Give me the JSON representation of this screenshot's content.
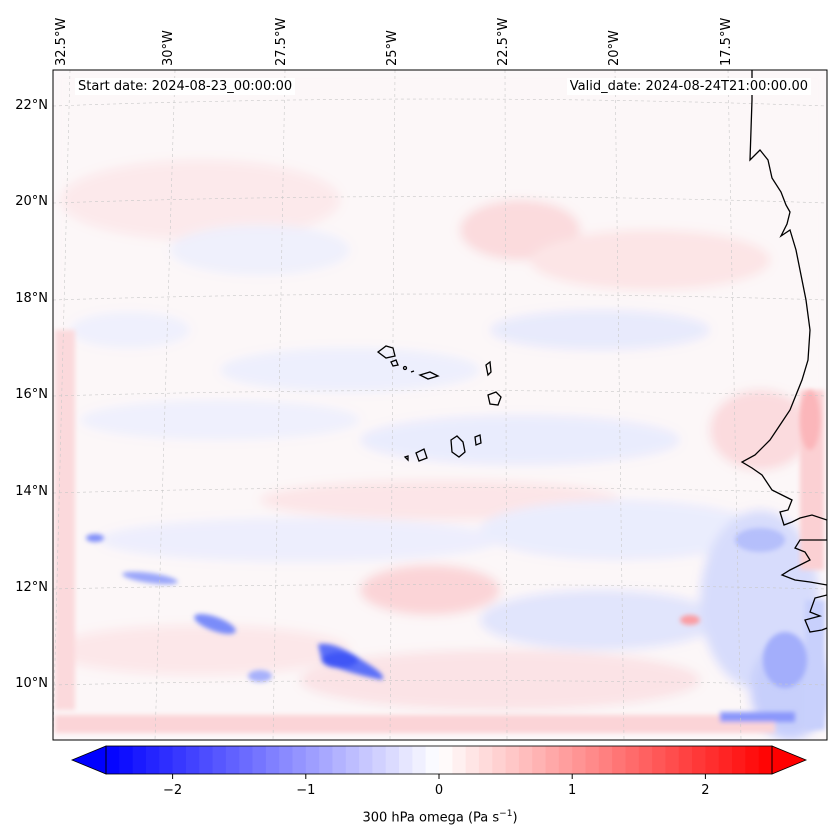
{
  "map": {
    "start_label": "Start date: 2024-08-23_00:00:00",
    "valid_label": "Valid_date: 2024-08-24T21:00:00.00",
    "lon_labels": [
      "32.5°W",
      "30°W",
      "27.5°W",
      "25°W",
      "22.5°W",
      "20°W",
      "17.5°W"
    ],
    "lat_labels": [
      "22°N",
      "20°N",
      "18°N",
      "16°N",
      "14°N",
      "12°N",
      "10°N"
    ],
    "field": "300 hPa omega",
    "colormap": "bwr",
    "colors": {
      "negative": "#0000ff",
      "neutral": "#ffffff",
      "positive": "#ff0000",
      "coast": "#000000",
      "grid": "#b0b0b0"
    }
  },
  "colorbar": {
    "label_text": "300 hPa omega (Pa s",
    "label_sup": "−1",
    "label_end": ")",
    "ticks": [
      "−2",
      "−1",
      "0",
      "1",
      "2"
    ],
    "tick_values": [
      -2,
      -1,
      0,
      1,
      2
    ],
    "range": [
      -2.5,
      2.5
    ],
    "extend": "both"
  }
}
